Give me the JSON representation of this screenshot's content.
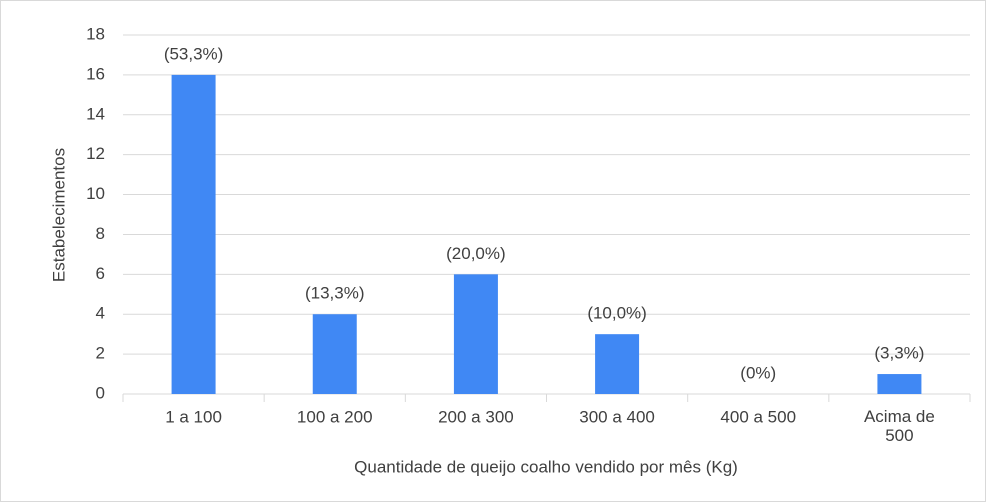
{
  "chart_data": {
    "type": "bar",
    "x_label": "Quantidade de queijo coalho vendido por mês (Kg)",
    "y_label": "Estabelecimentos",
    "categories": [
      "1 a 100",
      "100 a 200",
      "200 a 300",
      "300 a 400",
      "400 a 500",
      "Acima de 500"
    ],
    "values": [
      16,
      4,
      6,
      3,
      0,
      1
    ],
    "annotations": [
      "(53,3%)",
      "(13,3%)",
      "(20,0%)",
      "(10,0%)",
      "(0%)",
      "(3,3%)"
    ],
    "color": "#4088f4",
    "ylim": [
      0,
      18
    ],
    "yticks": [
      0,
      2,
      4,
      6,
      8,
      10,
      12,
      14,
      16,
      18
    ],
    "grid": true
  }
}
